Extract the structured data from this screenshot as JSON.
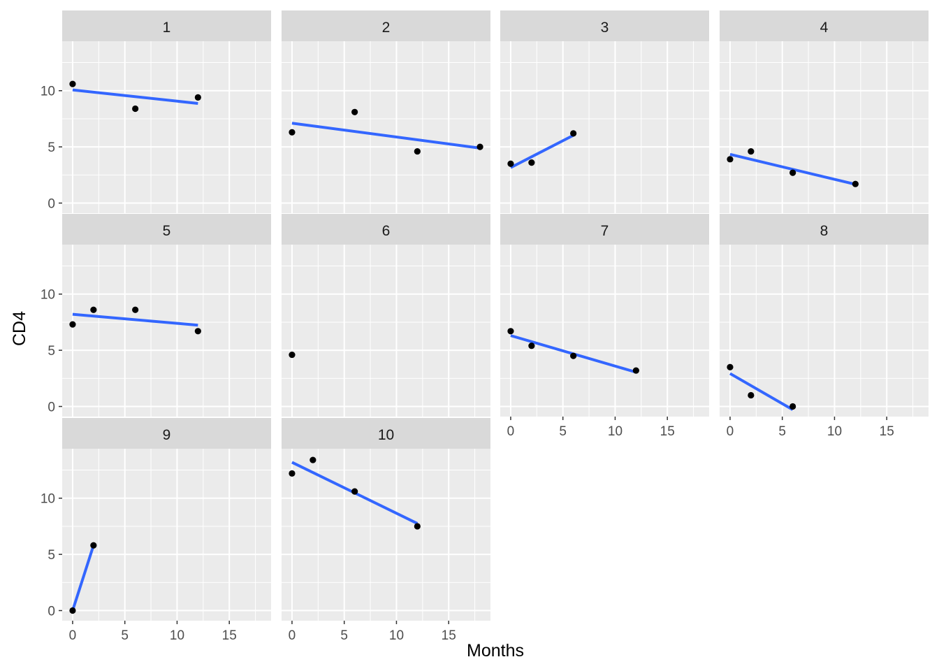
{
  "chart_data": {
    "type": "scatter",
    "layout": "facet-wrap",
    "ncol": 4,
    "xlabel": "Months",
    "ylabel": "CD4",
    "xlim": [
      -1,
      19
    ],
    "ylim": [
      -0.9,
      14.4
    ],
    "xticks": [
      0,
      5,
      10,
      15
    ],
    "yticks": [
      0,
      5,
      10
    ],
    "grid": true,
    "fit": "linear",
    "colors": {
      "panel_bg": "#EBEBEB",
      "strip_bg": "#D9D9D9",
      "grid": "#FFFFFF",
      "points": "#000000",
      "fit_line": "#3366FF",
      "axis_text": "#4D4D4D",
      "strip_text": "#1A1A1A"
    },
    "panels": [
      {
        "label": "1",
        "points": [
          [
            0,
            10.6
          ],
          [
            6,
            8.4
          ],
          [
            12,
            9.4
          ]
        ]
      },
      {
        "label": "2",
        "points": [
          [
            0,
            6.3
          ],
          [
            6,
            8.1
          ],
          [
            12,
            4.6
          ],
          [
            18,
            5.0
          ]
        ]
      },
      {
        "label": "3",
        "points": [
          [
            0,
            3.5
          ],
          [
            2,
            3.6
          ],
          [
            6,
            6.2
          ]
        ]
      },
      {
        "label": "4",
        "points": [
          [
            0,
            3.9
          ],
          [
            2,
            4.6
          ],
          [
            6,
            2.7
          ],
          [
            12,
            1.7
          ]
        ]
      },
      {
        "label": "5",
        "points": [
          [
            0,
            7.3
          ],
          [
            2,
            8.6
          ],
          [
            6,
            8.6
          ],
          [
            12,
            6.7
          ]
        ]
      },
      {
        "label": "6",
        "points": [
          [
            0,
            4.6
          ]
        ]
      },
      {
        "label": "7",
        "points": [
          [
            0,
            6.7
          ],
          [
            2,
            5.4
          ],
          [
            6,
            4.5
          ],
          [
            12,
            3.2
          ]
        ]
      },
      {
        "label": "8",
        "points": [
          [
            0,
            3.5
          ],
          [
            2,
            1.0
          ],
          [
            6,
            0.0
          ]
        ]
      },
      {
        "label": "9",
        "points": [
          [
            0,
            0.0
          ],
          [
            2,
            5.8
          ]
        ]
      },
      {
        "label": "10",
        "points": [
          [
            0,
            12.2
          ],
          [
            2,
            13.4
          ],
          [
            6,
            10.6
          ],
          [
            12,
            7.5
          ]
        ]
      }
    ]
  }
}
